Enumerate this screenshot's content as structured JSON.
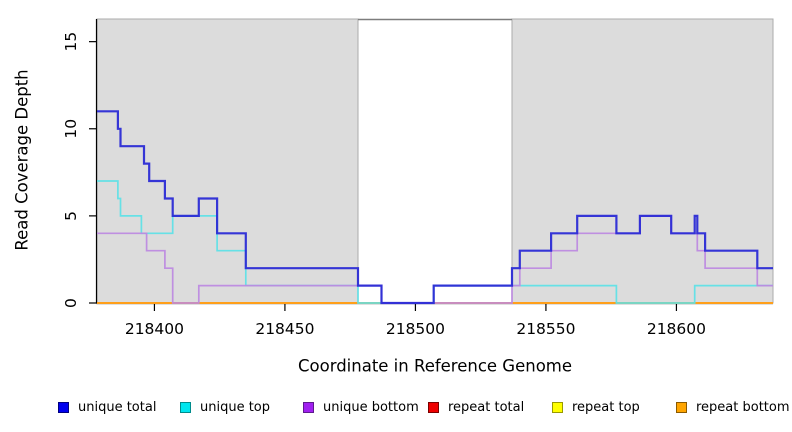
{
  "chart_data": {
    "type": "line",
    "subtype": "step",
    "title": "",
    "xlabel": "Coordinate in Reference Genome",
    "ylabel": "Read Coverage Depth",
    "xlim": [
      218378,
      218637
    ],
    "ylim": [
      0,
      16.3
    ],
    "x_ticks": [
      218400,
      218450,
      218500,
      218550,
      218600
    ],
    "y_ticks": [
      0,
      5,
      10,
      15
    ],
    "grid": false,
    "legend_position": "bottom",
    "shaded_regions": [
      {
        "from": 218378,
        "to": 218478
      },
      {
        "from": 218537,
        "to": 218637
      }
    ],
    "colors": {
      "region_fill": "#dcdcdc",
      "region_border": "#ababab",
      "gap_top_line": "#7d7d7d",
      "axis": "#000000"
    },
    "draw_order": [
      3,
      4,
      5,
      1,
      2,
      0
    ],
    "series": [
      {
        "id": "unique-total",
        "name": "unique total",
        "line_color": "#2b2bd5",
        "line_width": 2.2,
        "line_opacity": 0.95,
        "legend_fill": "#0000ee",
        "legend_border": "#000080",
        "steps": [
          [
            218378,
            11
          ],
          [
            218386,
            10
          ],
          [
            218387,
            9
          ],
          [
            218396,
            8
          ],
          [
            218398,
            7
          ],
          [
            218404,
            6
          ],
          [
            218407,
            5
          ],
          [
            218417,
            6
          ],
          [
            218424,
            4
          ],
          [
            218435,
            2
          ],
          [
            218478,
            1
          ],
          [
            218487,
            0
          ],
          [
            218507,
            1
          ],
          [
            218537,
            2
          ],
          [
            218540,
            3
          ],
          [
            218552,
            4
          ],
          [
            218562,
            5
          ],
          [
            218577,
            4
          ],
          [
            218586,
            5
          ],
          [
            218598,
            4
          ],
          [
            218607,
            5
          ],
          [
            218608,
            4
          ],
          [
            218611,
            3
          ],
          [
            218631,
            2
          ]
        ]
      },
      {
        "id": "unique-top",
        "name": "unique top",
        "line_color": "#5fe0e6",
        "line_width": 1.7,
        "line_opacity": 0.95,
        "legend_fill": "#00e5ee",
        "legend_border": "#008b8b",
        "steps": [
          [
            218378,
            7
          ],
          [
            218386,
            6
          ],
          [
            218387,
            5
          ],
          [
            218395,
            4
          ],
          [
            218407,
            5
          ],
          [
            218424,
            3
          ],
          [
            218435,
            1
          ],
          [
            218478,
            0
          ],
          [
            218507,
            1
          ],
          [
            218577,
            0
          ],
          [
            218607,
            1
          ]
        ]
      },
      {
        "id": "unique-bottom",
        "name": "unique bottom",
        "line_color": "#bd8ae0",
        "line_width": 1.7,
        "line_opacity": 0.95,
        "legend_fill": "#a020f0",
        "legend_border": "#5e1a8e",
        "steps": [
          [
            218378,
            4
          ],
          [
            218397,
            3
          ],
          [
            218404,
            2
          ],
          [
            218407,
            0
          ],
          [
            218417,
            1
          ],
          [
            218487,
            0
          ],
          [
            218537,
            1
          ],
          [
            218540,
            2
          ],
          [
            218552,
            3
          ],
          [
            218562,
            4
          ],
          [
            218586,
            5
          ],
          [
            218598,
            4
          ],
          [
            218608,
            3
          ],
          [
            218611,
            2
          ],
          [
            218631,
            1
          ]
        ]
      },
      {
        "id": "repeat-total",
        "name": "repeat total",
        "line_color": "#ee0000",
        "line_width": 1.5,
        "line_opacity": 1,
        "legend_fill": "#ee0000",
        "legend_border": "#7a0000",
        "steps": [
          [
            218378,
            0
          ]
        ]
      },
      {
        "id": "repeat-top",
        "name": "repeat top",
        "line_color": "#ffff00",
        "line_width": 1.5,
        "line_opacity": 1,
        "legend_fill": "#ffff00",
        "legend_border": "#999900",
        "steps": [
          [
            218378,
            0
          ]
        ]
      },
      {
        "id": "repeat-bottom",
        "name": "repeat bottom",
        "line_color": "#ff9f1a",
        "line_width": 2,
        "line_opacity": 1,
        "legend_fill": "#ffa500",
        "legend_border": "#8b5a00",
        "steps": [
          [
            218378,
            0
          ]
        ]
      }
    ]
  }
}
